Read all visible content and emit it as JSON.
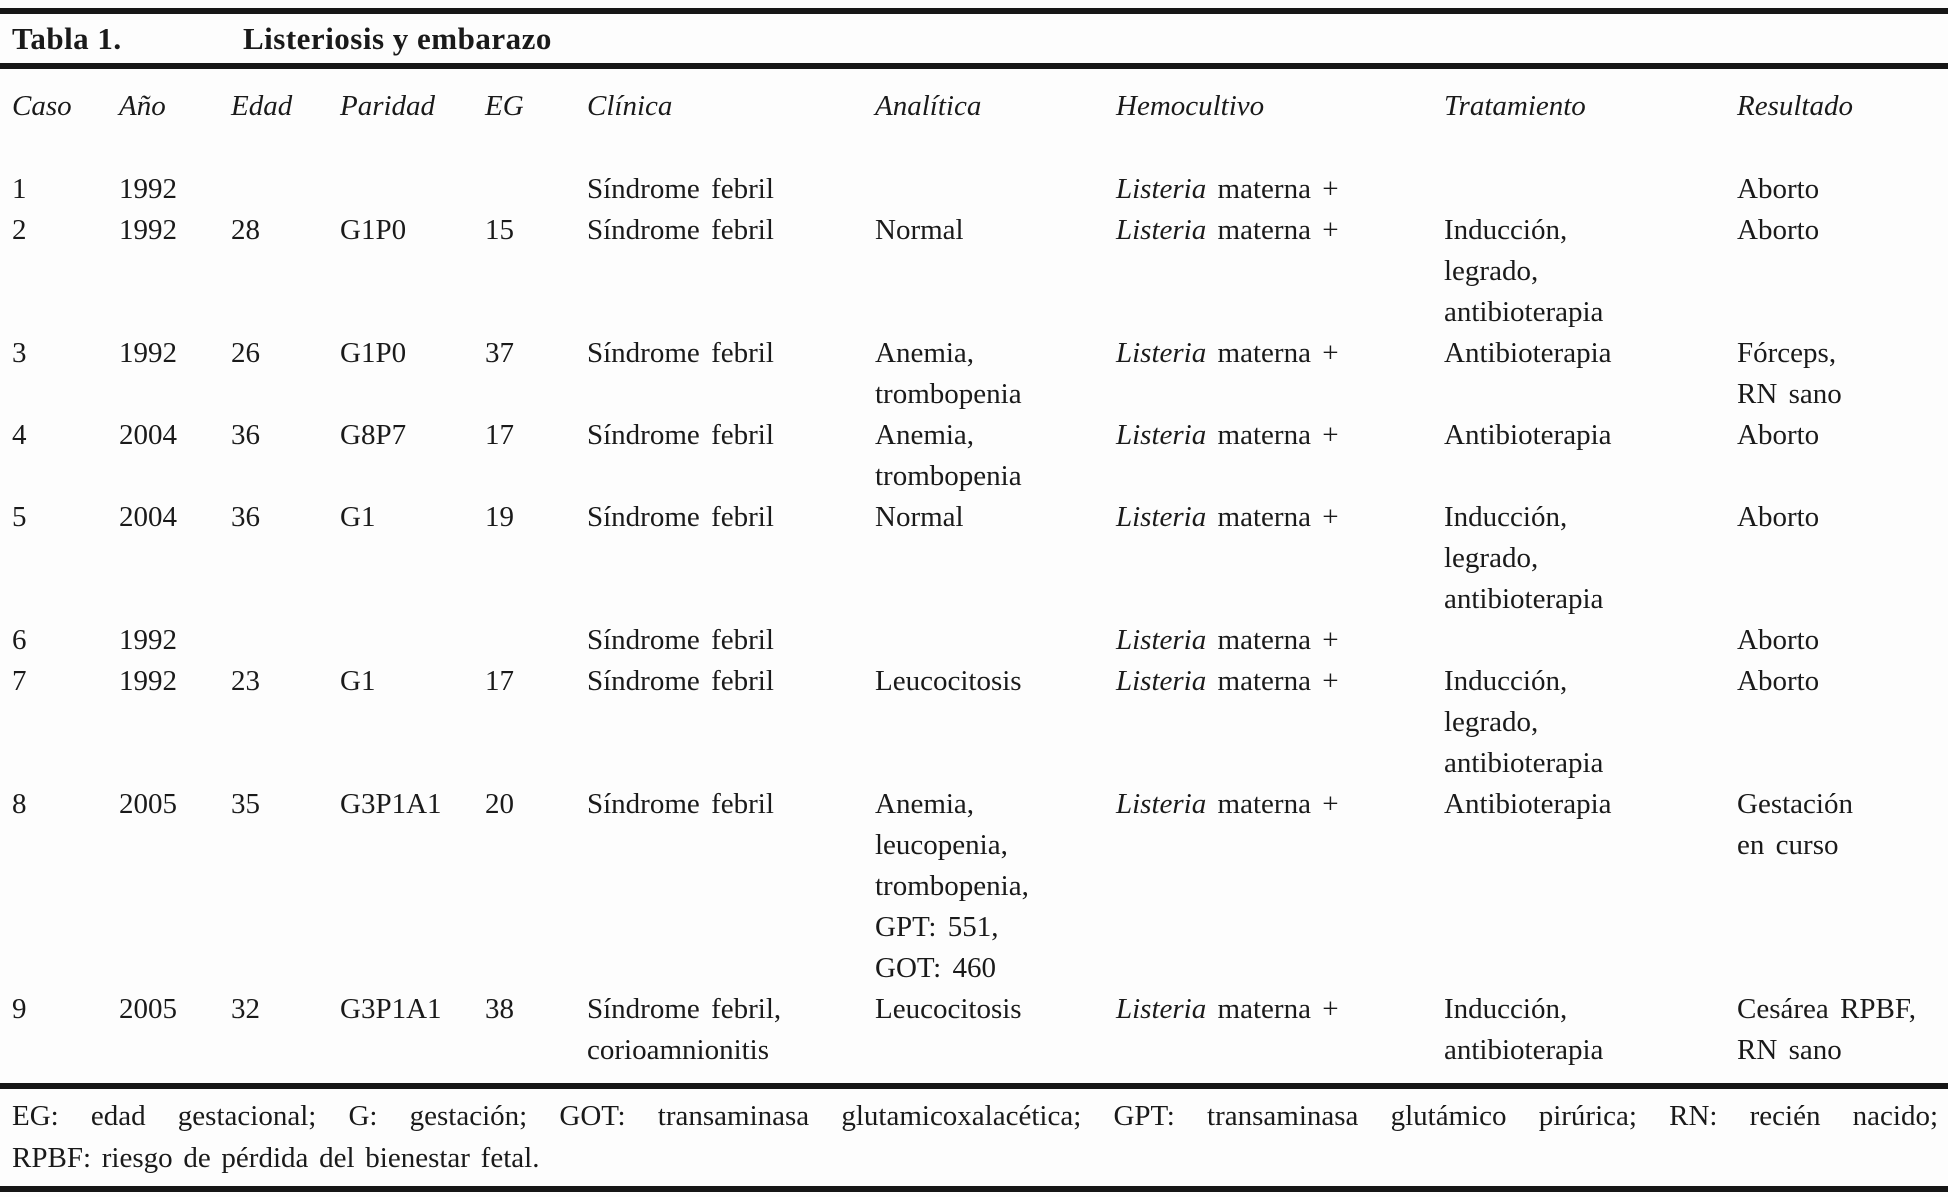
{
  "title": {
    "label": "Tabla 1.",
    "text": "Listeriosis y embarazo"
  },
  "table": {
    "columns": [
      "Caso",
      "Año",
      "Edad",
      "Paridad",
      "EG",
      "Clínica",
      "Analítica",
      "Hemocultivo",
      "Tratamiento",
      "Resultado"
    ],
    "rows": [
      {
        "caso": "1",
        "ano": "1992",
        "edad": "",
        "paridad": "",
        "eg": "",
        "clinica": [
          "Síndrome febril"
        ],
        "analitica": [],
        "hemocultivo": {
          "genus": "Listeria",
          "rest": "materna +"
        },
        "tratamiento": [],
        "resultado": [
          "Aborto"
        ]
      },
      {
        "caso": "2",
        "ano": "1992",
        "edad": "28",
        "paridad": "G1P0",
        "eg": "15",
        "clinica": [
          "Síndrome febril"
        ],
        "analitica": [
          "Normal"
        ],
        "hemocultivo": {
          "genus": "Listeria",
          "rest": "materna +"
        },
        "tratamiento": [
          "Inducción,",
          "legrado,",
          "antibioterapia"
        ],
        "resultado": [
          "Aborto"
        ]
      },
      {
        "caso": "3",
        "ano": "1992",
        "edad": "26",
        "paridad": "G1P0",
        "eg": "37",
        "clinica": [
          "Síndrome febril"
        ],
        "analitica": [
          "Anemia,",
          "trombopenia"
        ],
        "hemocultivo": {
          "genus": "Listeria",
          "rest": "materna +"
        },
        "tratamiento": [
          "Antibioterapia"
        ],
        "resultado": [
          "Fórceps,",
          "RN sano"
        ]
      },
      {
        "caso": "4",
        "ano": "2004",
        "edad": "36",
        "paridad": "G8P7",
        "eg": "17",
        "clinica": [
          "Síndrome febril"
        ],
        "analitica": [
          "Anemia,",
          "trombopenia"
        ],
        "hemocultivo": {
          "genus": "Listeria",
          "rest": "materna +"
        },
        "tratamiento": [
          "Antibioterapia"
        ],
        "resultado": [
          "Aborto"
        ]
      },
      {
        "caso": "5",
        "ano": "2004",
        "edad": "36",
        "paridad": "G1",
        "eg": "19",
        "clinica": [
          "Síndrome febril"
        ],
        "analitica": [
          "Normal"
        ],
        "hemocultivo": {
          "genus": "Listeria",
          "rest": "materna +"
        },
        "tratamiento": [
          "Inducción,",
          "legrado,",
          "antibioterapia"
        ],
        "resultado": [
          "Aborto"
        ]
      },
      {
        "caso": "6",
        "ano": "1992",
        "edad": "",
        "paridad": "",
        "eg": "",
        "clinica": [
          "Síndrome febril"
        ],
        "analitica": [],
        "hemocultivo": {
          "genus": "Listeria",
          "rest": "materna +"
        },
        "tratamiento": [],
        "resultado": [
          "Aborto"
        ]
      },
      {
        "caso": "7",
        "ano": "1992",
        "edad": "23",
        "paridad": "G1",
        "eg": "17",
        "clinica": [
          "Síndrome febril"
        ],
        "analitica": [
          "Leucocitosis"
        ],
        "hemocultivo": {
          "genus": "Listeria",
          "rest": "materna +"
        },
        "tratamiento": [
          "Inducción,",
          "legrado,",
          "antibioterapia"
        ],
        "resultado": [
          "Aborto"
        ]
      },
      {
        "caso": "8",
        "ano": "2005",
        "edad": "35",
        "paridad": "G3P1A1",
        "eg": "20",
        "clinica": [
          "Síndrome febril"
        ],
        "analitica": [
          "Anemia,",
          "leucopenia,",
          "trombopenia,",
          "GPT: 551,",
          "GOT: 460"
        ],
        "hemocultivo": {
          "genus": "Listeria",
          "rest": "materna +"
        },
        "tratamiento": [
          "Antibioterapia"
        ],
        "resultado": [
          "Gestación",
          "en curso"
        ]
      },
      {
        "caso": "9",
        "ano": "2005",
        "edad": "32",
        "paridad": "G3P1A1",
        "eg": "38",
        "clinica": [
          "Síndrome febril,",
          "corioamnionitis"
        ],
        "analitica": [
          "Leucocitosis"
        ],
        "hemocultivo": {
          "genus": "Listeria",
          "rest": "materna +"
        },
        "tratamiento": [
          "Inducción,",
          "antibioterapia"
        ],
        "resultado": [
          "Cesárea RPBF,",
          "RN sano"
        ]
      }
    ]
  },
  "footnote": {
    "line1": "EG: edad gestacional; G: gestación; GOT: transaminasa glutamicoxalacética; GPT: transaminasa glutámico pirúrica; RN: recién nacido;",
    "line2": "RPBF: riesgo de pérdida del bienestar fetal."
  }
}
